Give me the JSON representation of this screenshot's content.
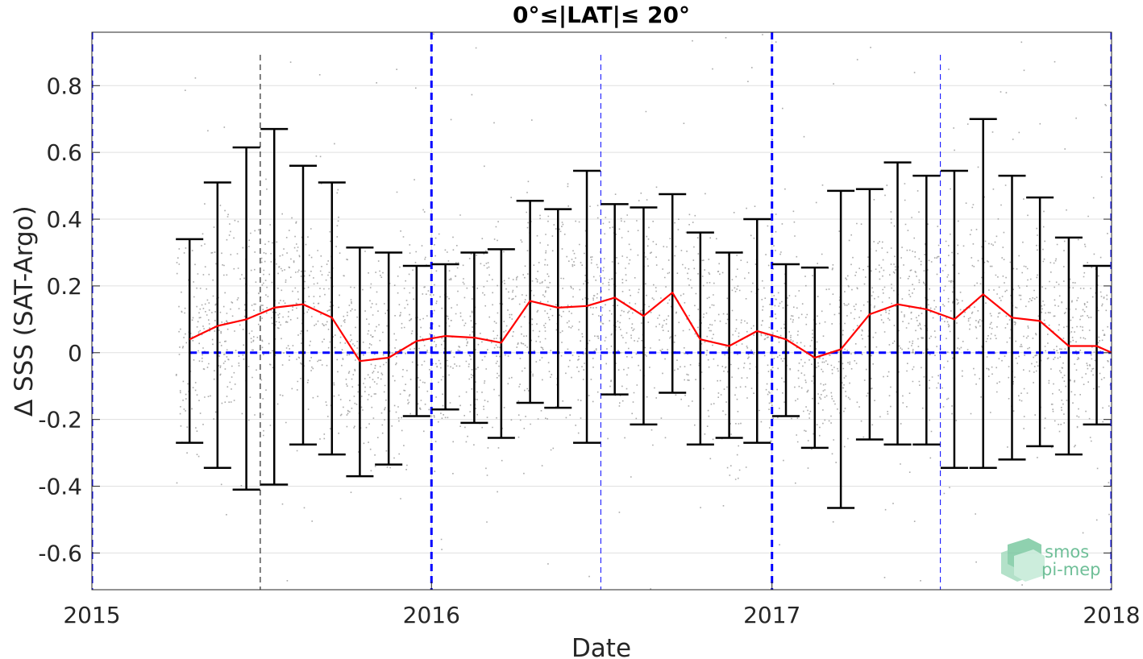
{
  "chart_data": {
    "type": "scatter",
    "title": "0°≤|LAT|≤ 20°",
    "xlabel": "Date",
    "ylabel": "∆ SSS (SAT-Argo)",
    "xlim": [
      "2015-01-01",
      "2018-01-01"
    ],
    "ylim": [
      -0.71,
      0.96
    ],
    "x_ticks": [
      {
        "value": "2015-01-01",
        "label": "2015"
      },
      {
        "value": "2016-01-01",
        "label": "2016"
      },
      {
        "value": "2017-01-01",
        "label": "2017"
      },
      {
        "value": "2018-01-01",
        "label": "2018"
      }
    ],
    "y_ticks": [
      {
        "value": 0.8,
        "label": "0.8"
      },
      {
        "value": 0.6,
        "label": "0.6"
      },
      {
        "value": 0.4,
        "label": "0.4"
      },
      {
        "value": 0.2,
        "label": "0.2"
      },
      {
        "value": 0,
        "label": "0"
      },
      {
        "value": -0.2,
        "label": "-0.2"
      },
      {
        "value": -0.4,
        "label": "-0.4"
      },
      {
        "value": -0.6,
        "label": "-0.6"
      }
    ],
    "grid": true,
    "reference_line_y": 0,
    "year_lines": [
      "2015-01-01",
      "2016-01-01",
      "2017-01-01",
      "2018-01-01"
    ],
    "midyear_lines": [
      "2015-07-01",
      "2016-07-01",
      "2017-07-01"
    ],
    "colors": {
      "mean_line": "#ff0000",
      "error_bars": "#000000",
      "scatter": "#8c8c8c",
      "reference_lines": "#0000ff",
      "grid": "#e0e0e0"
    },
    "series": [
      {
        "kind": "monthly_mean_with_range",
        "points": [
          {
            "date": "2015-04-16",
            "mean": 0.04,
            "low": -0.27,
            "high": 0.34
          },
          {
            "date": "2015-05-16",
            "mean": 0.08,
            "low": -0.345,
            "high": 0.51
          },
          {
            "date": "2015-06-16",
            "mean": 0.1,
            "low": -0.41,
            "high": 0.615
          },
          {
            "date": "2015-07-16",
            "mean": 0.135,
            "low": -0.395,
            "high": 0.67
          },
          {
            "date": "2015-08-16",
            "mean": 0.145,
            "low": -0.275,
            "high": 0.56
          },
          {
            "date": "2015-09-16",
            "mean": 0.105,
            "low": -0.305,
            "high": 0.51
          },
          {
            "date": "2015-10-16",
            "mean": -0.025,
            "low": -0.37,
            "high": 0.315
          },
          {
            "date": "2015-11-16",
            "mean": -0.015,
            "low": -0.335,
            "high": 0.3
          },
          {
            "date": "2015-12-16",
            "mean": 0.035,
            "low": -0.19,
            "high": 0.26
          },
          {
            "date": "2016-01-16",
            "mean": 0.05,
            "low": -0.17,
            "high": 0.265
          },
          {
            "date": "2016-02-16",
            "mean": 0.045,
            "low": -0.21,
            "high": 0.3
          },
          {
            "date": "2016-03-16",
            "mean": 0.03,
            "low": -0.255,
            "high": 0.31
          },
          {
            "date": "2016-04-16",
            "mean": 0.155,
            "low": -0.15,
            "high": 0.455
          },
          {
            "date": "2016-05-16",
            "mean": 0.135,
            "low": -0.165,
            "high": 0.43
          },
          {
            "date": "2016-06-16",
            "mean": 0.14,
            "low": -0.27,
            "high": 0.545
          },
          {
            "date": "2016-07-16",
            "mean": 0.165,
            "low": -0.125,
            "high": 0.445
          },
          {
            "date": "2016-08-16",
            "mean": 0.11,
            "low": -0.215,
            "high": 0.435
          },
          {
            "date": "2016-09-16",
            "mean": 0.18,
            "low": -0.12,
            "high": 0.475
          },
          {
            "date": "2016-10-16",
            "mean": 0.04,
            "low": -0.275,
            "high": 0.36
          },
          {
            "date": "2016-11-16",
            "mean": 0.02,
            "low": -0.255,
            "high": 0.3
          },
          {
            "date": "2016-12-16",
            "mean": 0.065,
            "low": -0.27,
            "high": 0.4
          },
          {
            "date": "2017-01-16",
            "mean": 0.04,
            "low": -0.19,
            "high": 0.265
          },
          {
            "date": "2017-02-16",
            "mean": -0.015,
            "low": -0.285,
            "high": 0.255
          },
          {
            "date": "2017-03-16",
            "mean": 0.01,
            "low": -0.465,
            "high": 0.485
          },
          {
            "date": "2017-04-16",
            "mean": 0.115,
            "low": -0.26,
            "high": 0.49
          },
          {
            "date": "2017-05-16",
            "mean": 0.145,
            "low": -0.275,
            "high": 0.57
          },
          {
            "date": "2017-06-16",
            "mean": 0.13,
            "low": -0.275,
            "high": 0.53
          },
          {
            "date": "2017-07-16",
            "mean": 0.1,
            "low": -0.345,
            "high": 0.545
          },
          {
            "date": "2017-08-16",
            "mean": 0.175,
            "low": -0.345,
            "high": 0.7
          },
          {
            "date": "2017-09-16",
            "mean": 0.105,
            "low": -0.32,
            "high": 0.53
          },
          {
            "date": "2017-10-16",
            "mean": 0.095,
            "low": -0.28,
            "high": 0.465
          },
          {
            "date": "2017-11-16",
            "mean": 0.02,
            "low": -0.305,
            "high": 0.345
          },
          {
            "date": "2017-12-16",
            "mean": 0.02,
            "low": -0.215,
            "high": 0.26
          },
          {
            "date": "2018-01-01",
            "mean": 0.0
          }
        ]
      },
      {
        "kind": "individual_differences",
        "date_range": [
          "2015-04-01",
          "2018-01-01"
        ],
        "approx_count": 6500,
        "y_range": [
          -0.71,
          0.96
        ]
      }
    ]
  },
  "logo": {
    "line1": "smos",
    "line2": "pi-mep"
  }
}
